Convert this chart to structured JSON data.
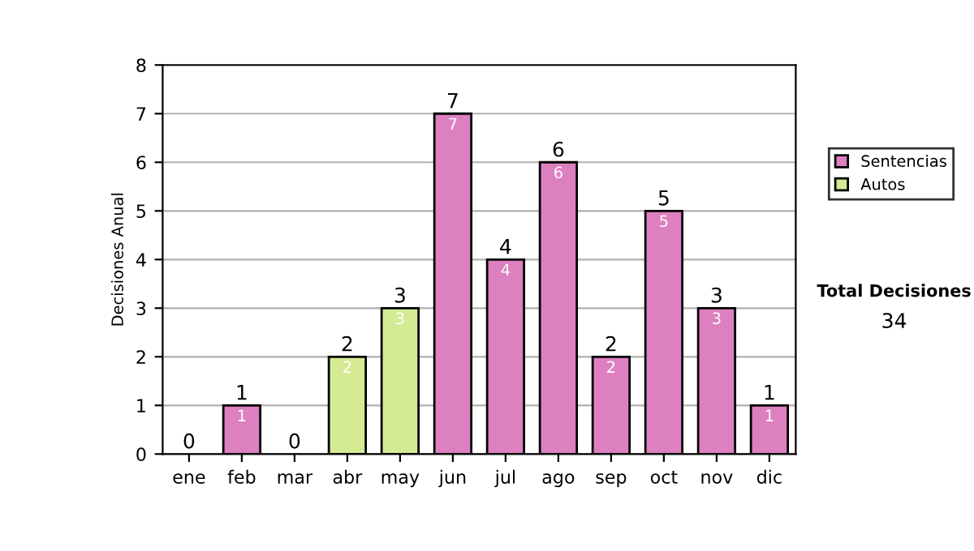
{
  "chart_data": {
    "type": "bar",
    "stacked": true,
    "ylabel": "Decisiones Anual",
    "categories": [
      "ene",
      "feb",
      "mar",
      "abr",
      "may",
      "jun",
      "jul",
      "ago",
      "sep",
      "oct",
      "nov",
      "dic"
    ],
    "series": [
      {
        "name": "Sentencias",
        "color": "#dd80c0",
        "values": [
          0,
          1,
          0,
          0,
          0,
          7,
          4,
          6,
          2,
          5,
          3,
          1
        ],
        "value_labels": [
          null,
          "1",
          null,
          null,
          null,
          "7",
          "4",
          "6",
          "2",
          "5",
          "3",
          "1"
        ]
      },
      {
        "name": "Autos",
        "color": "#d4eb94",
        "values": [
          0,
          0,
          0,
          2,
          3,
          0,
          0,
          0,
          0,
          0,
          0,
          0
        ],
        "value_labels": [
          null,
          null,
          null,
          "2",
          "3",
          null,
          null,
          null,
          null,
          null,
          null,
          null
        ]
      }
    ],
    "totals": [
      "0",
      "1",
      "0",
      "2",
      "3",
      "7",
      "4",
      "6",
      "2",
      "5",
      "3",
      "1"
    ],
    "ylim": [
      0,
      8
    ],
    "yticks": [
      0,
      1,
      2,
      3,
      4,
      5,
      6,
      7,
      8
    ],
    "grid": "y",
    "legend": "right",
    "annotations": [
      "Total Decisiones",
      "34"
    ]
  }
}
